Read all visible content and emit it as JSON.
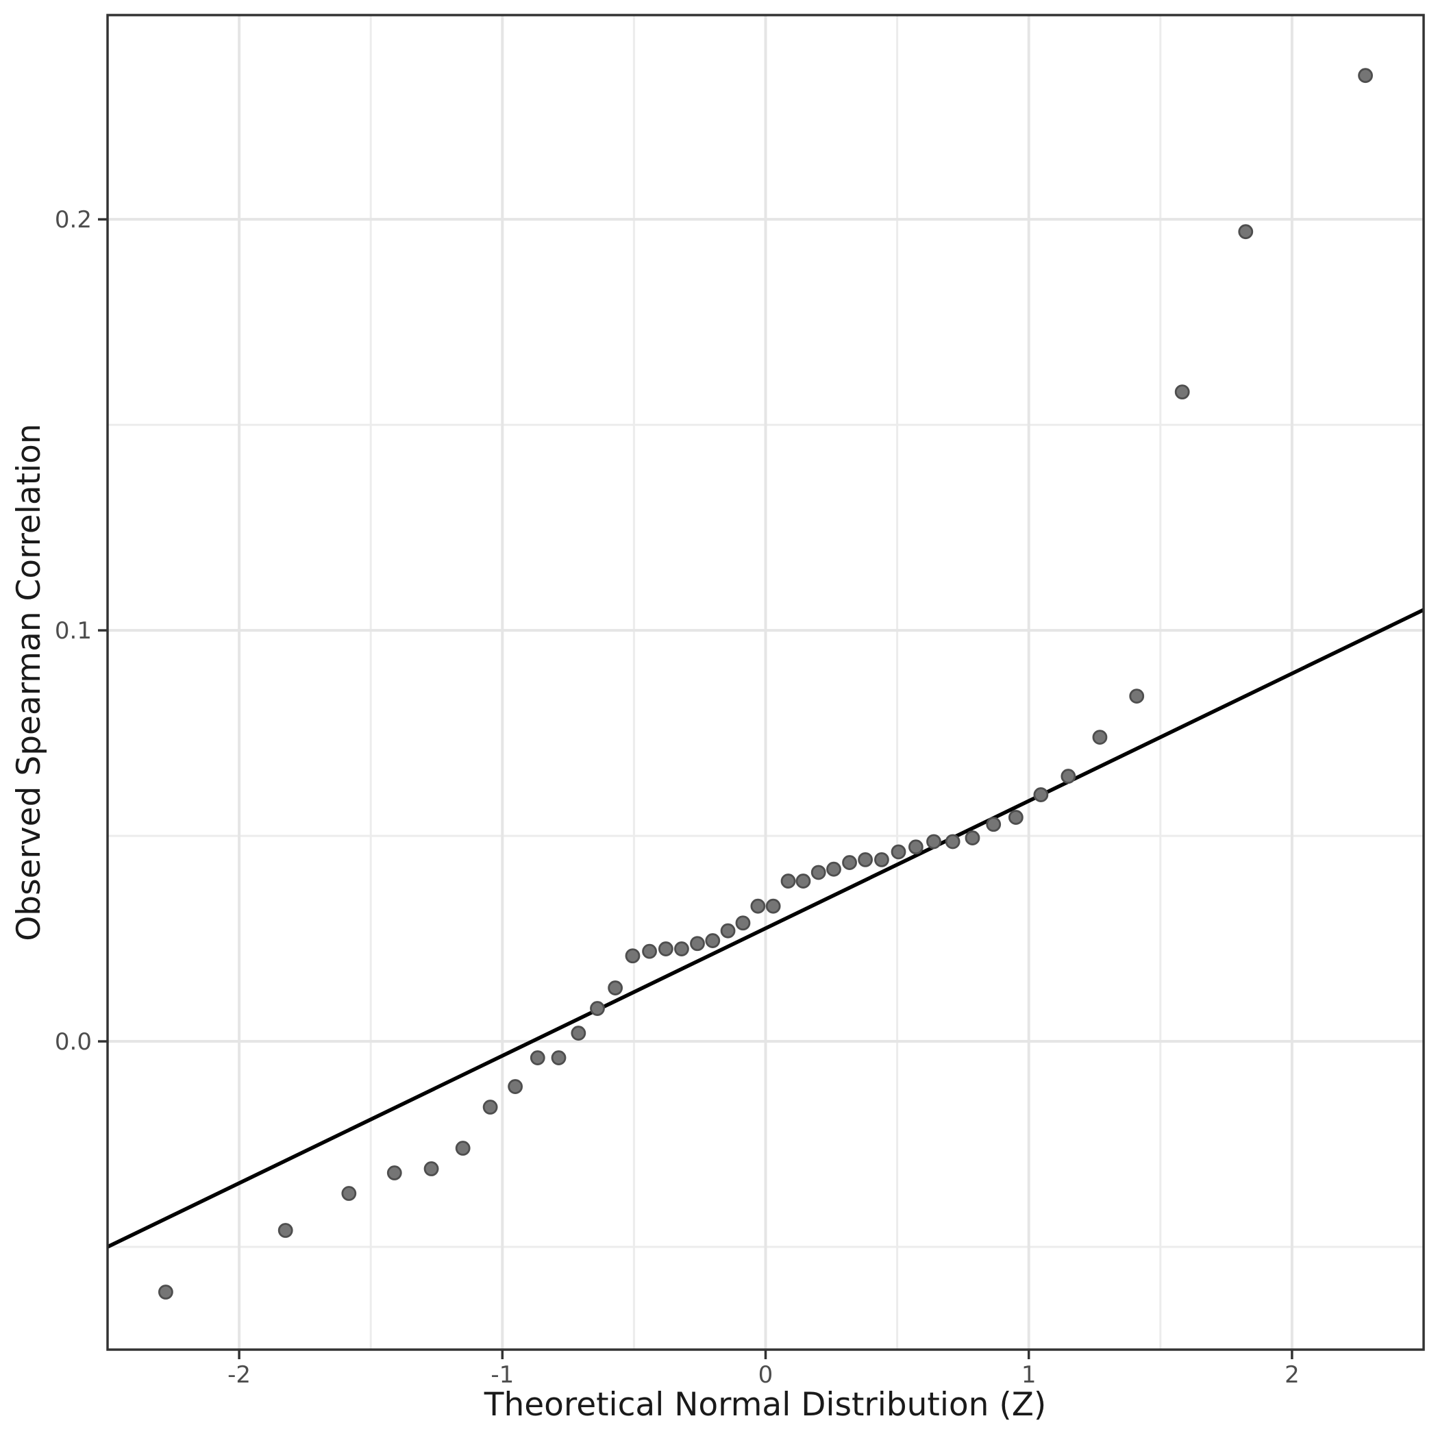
{
  "chart_data": {
    "type": "scatter",
    "subtype": "qq-plot",
    "title": "",
    "xlabel": "Theoretical Normal Distribution (Z)",
    "ylabel": "Observed Spearman Correlation",
    "xlim": [
      -2.5,
      2.5
    ],
    "ylim": [
      -0.075,
      0.2497
    ],
    "grid": true,
    "legend": false,
    "x_ticks": {
      "values": [
        -2,
        -1,
        0,
        1,
        2
      ],
      "labels": [
        "-2",
        "-1",
        "0",
        "1",
        "2"
      ]
    },
    "y_ticks": {
      "values": [
        0.0,
        0.1,
        0.2
      ],
      "labels": [
        "0.0",
        "0.1",
        "0.2"
      ]
    },
    "x_minor_gridlines": [
      -1.5,
      -0.5,
      0.5,
      1.5
    ],
    "y_minor_gridlines": [
      -0.05,
      0.05,
      0.15
    ],
    "points": {
      "x": [
        -2.279,
        -1.824,
        -1.583,
        -1.41,
        -1.27,
        -1.15,
        -1.046,
        -0.951,
        -0.866,
        -0.786,
        -0.711,
        -0.639,
        -0.571,
        -0.505,
        -0.441,
        -0.379,
        -0.319,
        -0.259,
        -0.201,
        -0.143,
        -0.086,
        -0.029,
        0.029,
        0.086,
        0.143,
        0.201,
        0.259,
        0.319,
        0.379,
        0.441,
        0.505,
        0.571,
        0.639,
        0.711,
        0.786,
        0.866,
        0.951,
        1.046,
        1.15,
        1.27,
        1.41,
        1.583,
        1.824,
        2.279
      ],
      "y": [
        -0.061,
        -0.046,
        -0.037,
        -0.032,
        -0.031,
        -0.026,
        -0.016,
        -0.011,
        -0.004,
        -0.004,
        0.002,
        0.008,
        0.013,
        0.0208,
        0.0219,
        0.0225,
        0.0225,
        0.0238,
        0.0245,
        0.0269,
        0.0288,
        0.0329,
        0.0329,
        0.039,
        0.039,
        0.0411,
        0.0419,
        0.0435,
        0.0442,
        0.0442,
        0.0461,
        0.0473,
        0.0486,
        0.0486,
        0.0495,
        0.0528,
        0.0545,
        0.06,
        0.0645,
        0.074,
        0.084,
        0.158,
        0.197,
        0.235
      ]
    },
    "reference_line": {
      "x1": -2.5,
      "y1": -0.05,
      "x2": 2.5,
      "y2": 0.105
    },
    "colors": {
      "panel_bg": "#ffffff",
      "border": "#333333",
      "grid_major": "#e5e5e5",
      "grid_minor": "#ececec",
      "point_fill": "#757575",
      "point_stroke": "#4e4e4e",
      "ref_line": "#000000",
      "tick_mark": "#333333",
      "tick_label": "#4d4d4d",
      "axis_title": "#1a1a1a"
    }
  }
}
